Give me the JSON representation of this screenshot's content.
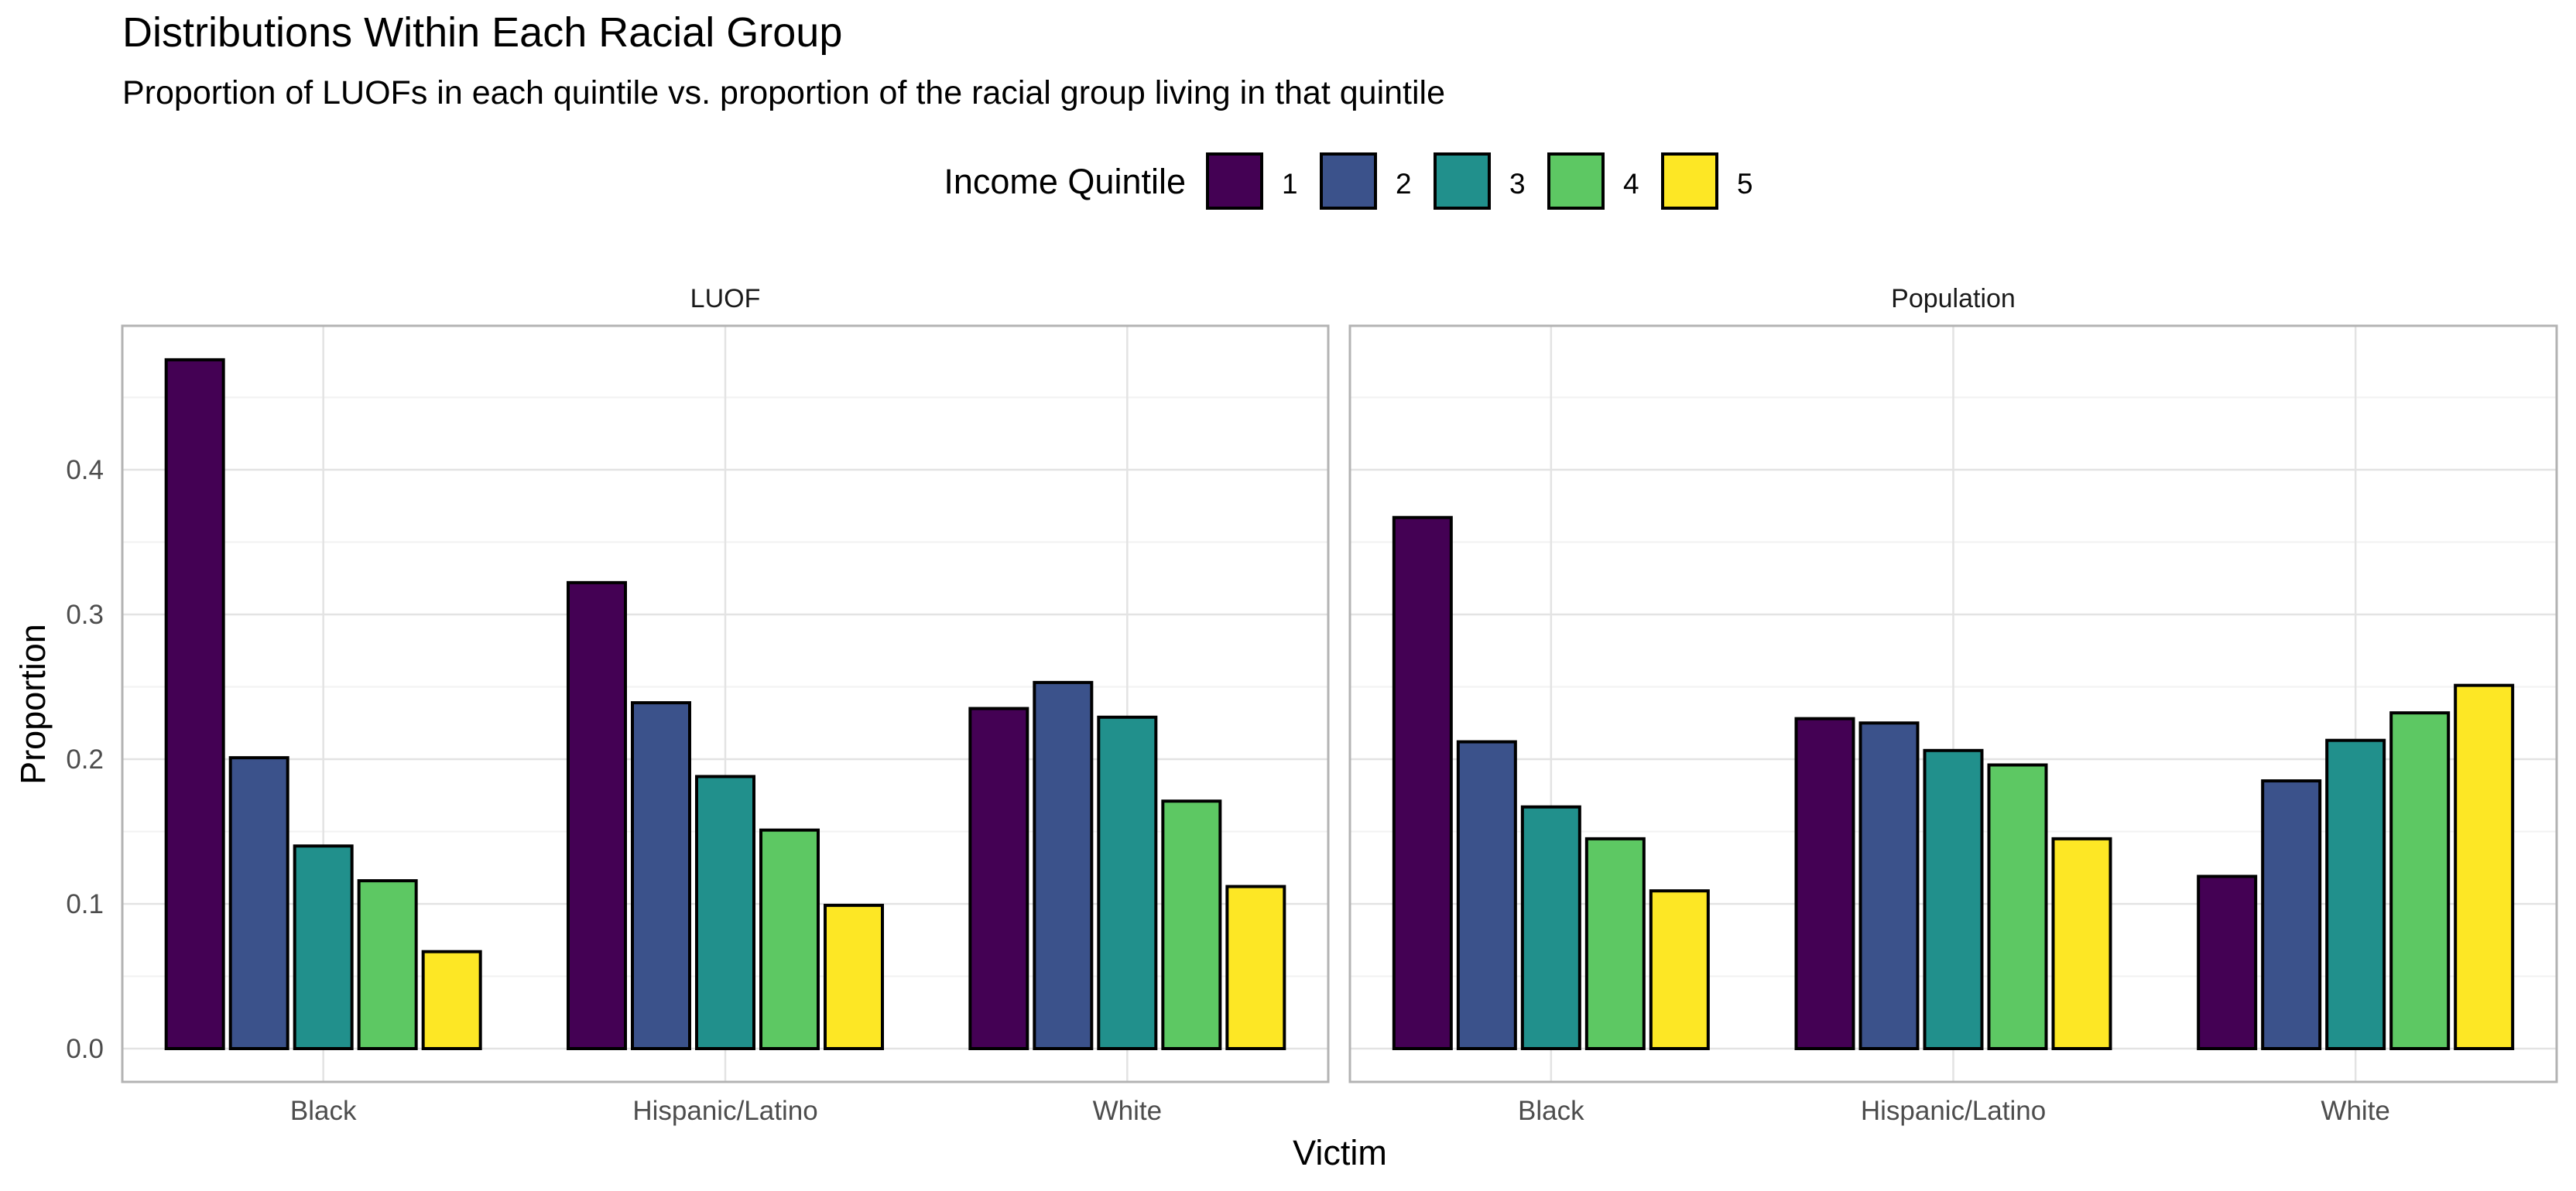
{
  "chart_data": {
    "type": "bar",
    "title": "Distributions Within Each Racial Group",
    "subtitle": "Proportion of LUOFs in each quintile vs. proportion of the racial group living in that quintile",
    "xlabel": "Victim",
    "ylabel": "Proportion",
    "legend_title": "Income Quintile",
    "legend_position": "top",
    "grid": true,
    "ylim": [
      0,
      0.5
    ],
    "y_ticks": [
      "0.0",
      "0.1",
      "0.2",
      "0.3",
      "0.4"
    ],
    "categories": [
      "Black",
      "Hispanic/Latino",
      "White"
    ],
    "series_colors": [
      "#440154",
      "#3B528B",
      "#21908C",
      "#5DC863",
      "#FDE725"
    ],
    "panels": [
      {
        "name": "LUOF",
        "series": [
          {
            "name": "1",
            "values": [
              0.476,
              0.322,
              0.235
            ]
          },
          {
            "name": "2",
            "values": [
              0.201,
              0.239,
              0.253
            ]
          },
          {
            "name": "3",
            "values": [
              0.14,
              0.188,
              0.229
            ]
          },
          {
            "name": "4",
            "values": [
              0.116,
              0.151,
              0.171
            ]
          },
          {
            "name": "5",
            "values": [
              0.067,
              0.099,
              0.112
            ]
          }
        ]
      },
      {
        "name": "Population",
        "series": [
          {
            "name": "1",
            "values": [
              0.367,
              0.228,
              0.119
            ]
          },
          {
            "name": "2",
            "values": [
              0.212,
              0.225,
              0.185
            ]
          },
          {
            "name": "3",
            "values": [
              0.167,
              0.206,
              0.213
            ]
          },
          {
            "name": "4",
            "values": [
              0.145,
              0.196,
              0.232
            ]
          },
          {
            "name": "5",
            "values": [
              0.109,
              0.145,
              0.251
            ]
          }
        ]
      }
    ]
  }
}
